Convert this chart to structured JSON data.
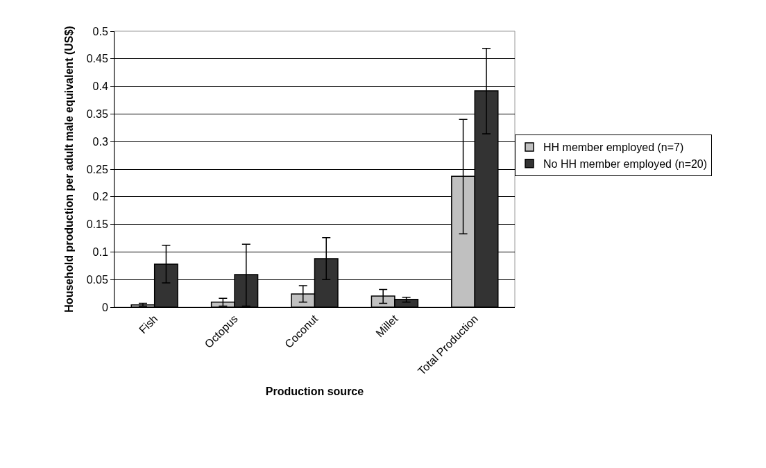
{
  "chart_data": {
    "type": "bar",
    "xlabel": "Production source",
    "ylabel": "Household production per adult male equivalent (US$)",
    "categories": [
      "Fish",
      "Octopus",
      "Coconut",
      "Millet",
      "Total Production"
    ],
    "series": [
      {
        "name": "HH member employed (n=7)",
        "color": "#c0c0c0",
        "values": [
          0.004,
          0.009,
          0.024,
          0.02,
          0.237
        ],
        "errors": [
          [
            0.002,
            0.007
          ],
          [
            0.002,
            0.016
          ],
          [
            0.009,
            0.039
          ],
          [
            0.007,
            0.032
          ],
          [
            0.133,
            0.34
          ]
        ]
      },
      {
        "name": "No HH member employed (n=20)",
        "color": "#333333",
        "values": [
          0.078,
          0.059,
          0.088,
          0.014,
          0.392
        ],
        "errors": [
          [
            0.044,
            0.112
          ],
          [
            0.002,
            0.114
          ],
          [
            0.05,
            0.126
          ],
          [
            0.009,
            0.018
          ],
          [
            0.314,
            0.469
          ]
        ]
      }
    ],
    "ylim": [
      0,
      0.5
    ],
    "yticks": [
      0,
      0.05,
      0.1,
      0.15,
      0.2,
      0.25,
      0.3,
      0.35,
      0.4,
      0.45,
      0.5
    ],
    "grid": "y",
    "legend": "right"
  }
}
